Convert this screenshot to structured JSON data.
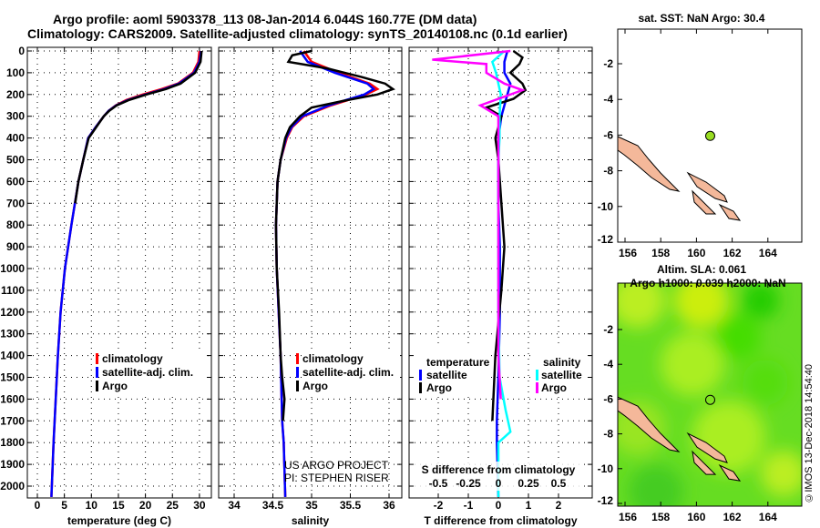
{
  "title": {
    "line1": "Argo profile: aoml 5903378_113 08-Jan-2014 6.044S 160.77E (DM data)",
    "line2": "Climatology: CARS2009. Satellite-adjusted climatology: synTS_20140108.nc (0.1d earlier)"
  },
  "credit": {
    "project": "US ARGO PROJECT",
    "pi": "PI: STEPHEN RISER",
    "stamp": "©IMOS 13-Dec-2018 14:54:40"
  },
  "colors": {
    "climatology": "#ff0000",
    "satellite": "#0000ff",
    "argo": "#000000",
    "s_satellite": "#00ffff",
    "s_argo": "#ff00ff",
    "land": "#f4b89a"
  },
  "chart_data": [
    {
      "type": "line",
      "xlabel": "temperature (deg C)",
      "xticks": [
        0,
        5,
        10,
        15,
        20,
        25,
        30
      ],
      "xlim": [
        -2,
        32
      ],
      "ylim": [
        0,
        2050
      ],
      "yticks": [
        0,
        100,
        200,
        300,
        400,
        500,
        600,
        700,
        800,
        900,
        1000,
        1100,
        1200,
        1300,
        1400,
        1500,
        1600,
        1700,
        1800,
        1900,
        2000
      ],
      "legend": [
        "climatology",
        "satellite-adj. clim.",
        "Argo"
      ],
      "series": [
        {
          "name": "climatology",
          "depth": [
            0,
            50,
            100,
            150,
            175,
            200,
            225,
            250,
            275,
            300,
            350,
            400,
            500,
            600,
            800,
            1000,
            1200,
            1400,
            1600,
            1800,
            2050
          ],
          "values": [
            30,
            29.8,
            28.8,
            26,
            23,
            19.5,
            16.5,
            14.5,
            13.2,
            12.3,
            10.8,
            9.4,
            8.5,
            7.6,
            6.3,
            5.1,
            4.3,
            3.8,
            3.4,
            3.0,
            2.6
          ]
        },
        {
          "name": "satellite-adj. clim.",
          "depth": [
            0,
            50,
            100,
            150,
            175,
            200,
            225,
            250,
            275,
            300,
            350,
            400,
            500,
            600,
            800,
            1000,
            1200,
            1400,
            1600,
            1800,
            2050
          ],
          "values": [
            30.3,
            30,
            29,
            26.2,
            23.5,
            20,
            16.8,
            14.6,
            13.2,
            12.3,
            10.8,
            9.4,
            8.5,
            7.6,
            6.3,
            5.1,
            4.3,
            3.8,
            3.4,
            3.0,
            2.6
          ]
        },
        {
          "name": "Argo",
          "depth": [
            0,
            50,
            100,
            150,
            175,
            200,
            225,
            250,
            275,
            300,
            350,
            400,
            500,
            600,
            700
          ],
          "values": [
            30.4,
            30.2,
            29.2,
            26.5,
            23.8,
            20.2,
            17,
            14.7,
            13.3,
            12.3,
            10.9,
            9.5,
            8.5,
            7.6,
            7.0
          ]
        }
      ]
    },
    {
      "type": "line",
      "xlabel": "salinity",
      "xticks": [
        34,
        34.5,
        35,
        35.5,
        36
      ],
      "xlim": [
        33.8,
        36.1
      ],
      "ylim": [
        0,
        2050
      ],
      "legend": [
        "climatology",
        "satellite-adj. clim.",
        "Argo"
      ],
      "series": [
        {
          "name": "climatology",
          "depth": [
            0,
            50,
            100,
            150,
            175,
            200,
            250,
            300,
            350,
            400,
            500,
            600,
            800,
            1000,
            1400,
            1700,
            1800,
            2050
          ],
          "values": [
            34.9,
            35.0,
            35.35,
            35.75,
            35.85,
            35.7,
            35.25,
            34.9,
            34.75,
            34.68,
            34.6,
            34.56,
            34.54,
            34.55,
            34.6,
            34.62,
            34.64,
            34.66
          ]
        },
        {
          "name": "satellite-adj. clim.",
          "depth": [
            0,
            50,
            100,
            150,
            175,
            200,
            250,
            300,
            350,
            400,
            500,
            600,
            800,
            1000,
            1400,
            1700,
            1800,
            2050
          ],
          "values": [
            34.85,
            34.95,
            35.3,
            35.72,
            35.8,
            35.68,
            35.22,
            34.88,
            34.74,
            34.67,
            34.6,
            34.56,
            34.54,
            34.55,
            34.6,
            34.62,
            34.64,
            34.66
          ]
        },
        {
          "name": "Argo",
          "depth": [
            0,
            20,
            50,
            80,
            120,
            150,
            175,
            200,
            230,
            260,
            300,
            350,
            400,
            500,
            600,
            800,
            1000,
            1200,
            1400,
            1500,
            1600,
            1700
          ],
          "values": [
            35.0,
            34.75,
            34.7,
            35.2,
            35.65,
            35.95,
            36.05,
            35.85,
            35.4,
            35.0,
            34.85,
            34.72,
            34.66,
            34.6,
            34.56,
            34.54,
            34.55,
            34.58,
            34.6,
            34.62,
            34.65,
            34.63
          ]
        }
      ]
    },
    {
      "type": "line",
      "xlabel": "T difference from climatology",
      "s_label": "S difference from climatology",
      "xticks": [
        -2,
        -1,
        0,
        1,
        2
      ],
      "s_ticks": [
        -0.5,
        -0.25,
        0,
        0.25,
        0.5
      ],
      "xlim": [
        -3.1,
        3.1
      ],
      "ylim": [
        0,
        2050
      ],
      "legend_t": {
        "title": "temperature",
        "items": [
          "satellite",
          "Argo"
        ]
      },
      "legend_s": {
        "title": "salinity",
        "items": [
          "satellite",
          "Argo"
        ]
      },
      "series": [
        {
          "name": "T satellite",
          "depth": [
            0,
            50,
            100,
            150,
            200,
            250,
            300,
            400,
            500,
            700,
            900,
            1200,
            1500,
            1700,
            1800,
            2050
          ],
          "values": [
            0.3,
            0.2,
            0.2,
            0.4,
            0.3,
            0.2,
            0.1,
            0,
            0,
            0,
            0.05,
            0.05,
            0,
            -0.05,
            -0.05,
            0
          ]
        },
        {
          "name": "T Argo",
          "depth": [
            0,
            30,
            60,
            100,
            150,
            180,
            220,
            260,
            300,
            400,
            500,
            700,
            900,
            1100,
            1400,
            1700
          ],
          "values": [
            0.5,
            0.8,
            0.7,
            0.4,
            0.8,
            0.9,
            0.5,
            -0.4,
            0.1,
            -0.1,
            0,
            0.1,
            0.2,
            0.1,
            -0.1,
            -0.2
          ]
        },
        {
          "name": "S satellite",
          "depth": [
            0,
            50,
            100,
            150,
            200,
            300,
            400,
            500,
            700,
            900,
            1200,
            1500,
            1650,
            1750,
            1800,
            2050
          ],
          "values": [
            0.05,
            -0.05,
            -0.02,
            0.0,
            0.02,
            0.01,
            0.01,
            0,
            0,
            0,
            0,
            0.01,
            0.06,
            0.1,
            0,
            0
          ]
        },
        {
          "name": "S Argo",
          "depth": [
            0,
            40,
            60,
            100,
            150,
            180,
            250,
            300,
            400,
            500,
            700,
            1000,
            1400,
            1600
          ],
          "values": [
            0.1,
            -0.55,
            -0.1,
            -0.1,
            0.05,
            0.2,
            -0.15,
            0,
            0,
            0,
            0,
            0,
            0,
            0.02
          ]
        }
      ]
    },
    {
      "type": "map",
      "title": "sat. SST: NaN Argo: 30.4",
      "xticks": [
        156,
        158,
        160,
        162,
        164
      ],
      "yticks": [
        -2,
        -4,
        -6,
        -8,
        -10,
        -12
      ],
      "float": [
        160.77,
        -6.044
      ]
    },
    {
      "type": "map",
      "title1": "Altim. SLA: 0.061",
      "title2": "Argo h1000: 0.039 h2000: NaN",
      "xticks": [
        156,
        158,
        160,
        162,
        164
      ],
      "yticks": [
        -2,
        -4,
        -6,
        -8,
        -10,
        -12
      ],
      "float": [
        160.77,
        -6.044
      ]
    }
  ]
}
